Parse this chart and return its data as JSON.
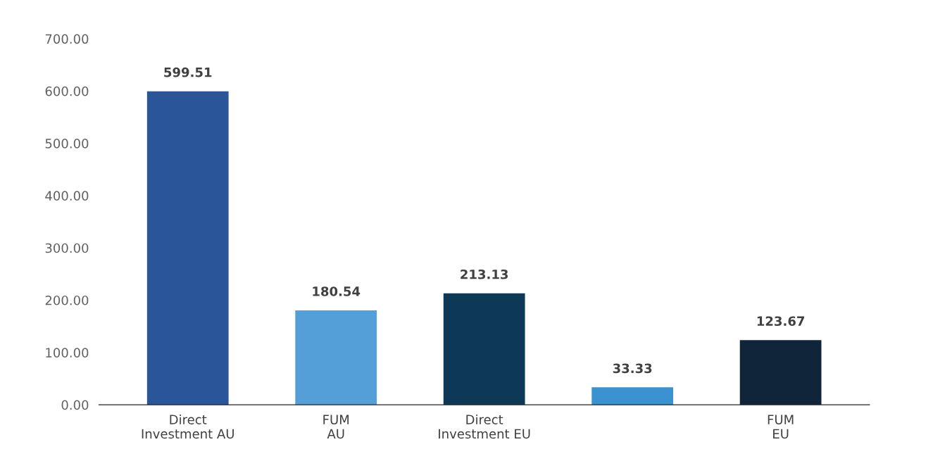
{
  "chart_data": {
    "type": "bar",
    "categories": [
      "Direct\nInvestment AU",
      "FUM\nAU",
      "Direct\nInvestment EU",
      null,
      "FUM\nEU"
    ],
    "values": [
      599.51,
      180.54,
      213.13,
      33.33,
      123.67
    ],
    "colors": [
      "#2a5598",
      "#549fd7",
      "#0d3856",
      "#3a93d0",
      "#10253a"
    ],
    "ylim": [
      0,
      700
    ],
    "yticks": [
      {
        "value": 0,
        "label": "0.00"
      },
      {
        "value": 100,
        "label": "100.00"
      },
      {
        "value": 200,
        "label": "200.00"
      },
      {
        "value": 300,
        "label": "300.00"
      },
      {
        "value": 400,
        "label": "400.00"
      },
      {
        "value": 500,
        "label": "500.00"
      },
      {
        "value": 600,
        "label": "600.00"
      },
      {
        "value": 700,
        "label": "700.00"
      }
    ],
    "data_labels": true,
    "grid": false,
    "legend": false
  }
}
